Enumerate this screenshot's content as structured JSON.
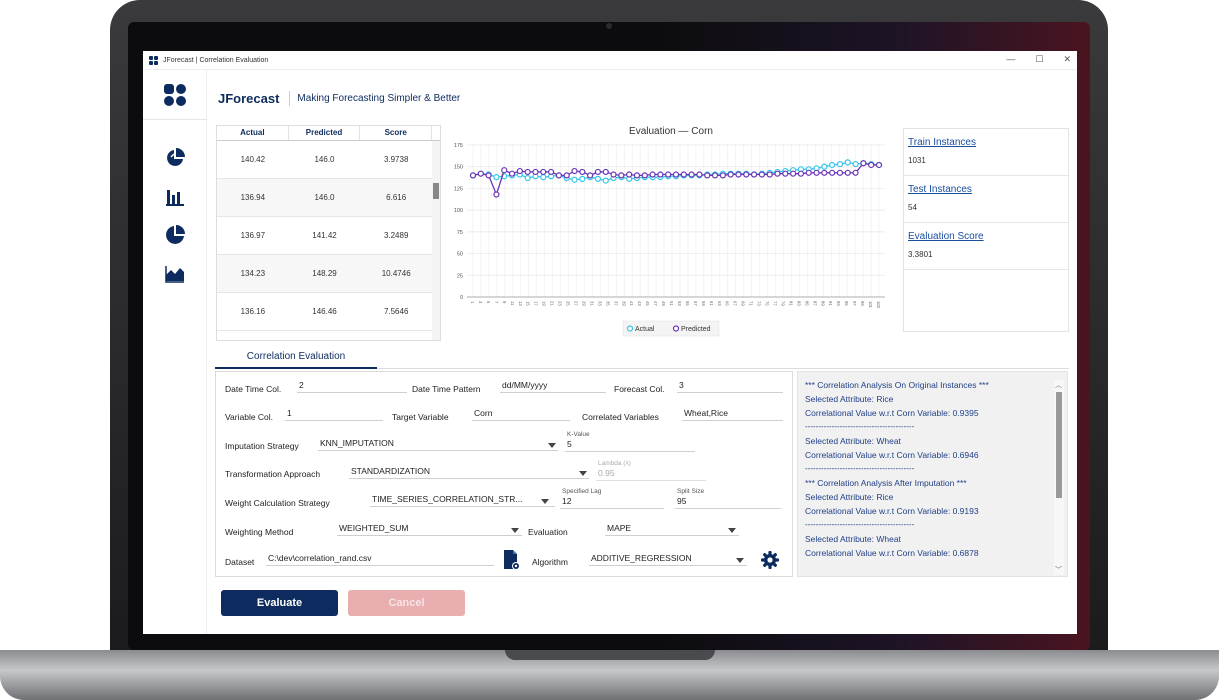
{
  "window": {
    "title": "JForecast | Correlation Evaluation",
    "controls": [
      "—",
      "☐",
      "✕"
    ]
  },
  "header": {
    "brand": "JForecast",
    "tagline": "Making Forecasting Simpler & Better"
  },
  "sidebar": {
    "icons": [
      "pie-chart-icon",
      "bar-chart-icon",
      "donut-chart-icon",
      "area-chart-icon"
    ]
  },
  "table": {
    "columns": [
      "Actual",
      "Predicted",
      "Score"
    ],
    "rows": [
      [
        "140.42",
        "146.0",
        "3.9738"
      ],
      [
        "136.94",
        "146.0",
        "6.616"
      ],
      [
        "136.97",
        "141.42",
        "3.2489"
      ],
      [
        "134.23",
        "148.29",
        "10.4746"
      ],
      [
        "136.16",
        "146.46",
        "7.5646"
      ]
    ]
  },
  "chart": {
    "title": "Evaluation  — Corn",
    "y_ticks": [
      "175",
      "150",
      "125",
      "100",
      "75",
      "50",
      "25",
      "0"
    ],
    "legend": [
      "Actual",
      "Predicted"
    ]
  },
  "chart_data": {
    "type": "line",
    "title": "Evaluation  — Corn",
    "xlabel": "",
    "ylabel": "",
    "ylim": [
      0,
      175
    ],
    "x_ticks": [
      "1",
      "3",
      "5",
      "7",
      "9",
      "11",
      "13",
      "15",
      "17",
      "19",
      "21",
      "23",
      "25",
      "27",
      "29",
      "31",
      "33",
      "35",
      "37",
      "39",
      "41",
      "43",
      "45",
      "47",
      "49",
      "51",
      "53",
      "55",
      "57",
      "59",
      "61",
      "63",
      "65",
      "67",
      "69",
      "71",
      "73",
      "75",
      "77",
      "79",
      "81",
      "83",
      "85",
      "87",
      "89",
      "91",
      "93",
      "95",
      "97",
      "99",
      "101",
      "103",
      "105",
      "107",
      "109",
      "111",
      "113",
      "115",
      "117",
      "119",
      "121",
      "123",
      "125",
      "127",
      "129",
      "131",
      "133",
      "135",
      "137",
      "139",
      "141",
      "143",
      "145",
      "147",
      "149",
      "151",
      "153",
      "155",
      "157",
      "159",
      "161",
      "163",
      "165",
      "167",
      "169",
      "171",
      "173",
      "175",
      "177",
      "179",
      "181",
      "183",
      "185",
      "187",
      "189",
      "191",
      "193",
      "195",
      "197",
      "199"
    ],
    "grid": true,
    "legend_position": "bottom-center",
    "series": [
      {
        "name": "Actual",
        "color": "#35c6e8",
        "values": [
          140,
          142,
          141,
          138,
          139,
          140,
          141,
          137,
          139,
          138,
          139,
          140,
          137,
          135,
          136,
          138,
          136,
          134,
          137,
          138,
          136,
          137,
          138,
          138,
          138,
          139,
          139,
          140,
          140,
          140,
          141,
          141,
          142,
          142,
          142,
          142,
          141,
          142,
          143,
          144,
          145,
          146,
          147,
          147,
          148,
          150,
          152,
          153,
          155,
          153,
          154,
          153,
          152
        ]
      },
      {
        "name": "Predicted",
        "color": "#6a35b5",
        "values": [
          140,
          142,
          140,
          118,
          146,
          142,
          145,
          144,
          144,
          144,
          144,
          140,
          140,
          145,
          144,
          140,
          144,
          144,
          141,
          140,
          141,
          140,
          140,
          141,
          141,
          141,
          141,
          141,
          141,
          141,
          140,
          140,
          140,
          141,
          141,
          141,
          141,
          141,
          141,
          142,
          142,
          142,
          142,
          143,
          143,
          143,
          143,
          143,
          143,
          143,
          154,
          152,
          152
        ]
      }
    ]
  },
  "stats": {
    "train_label": "Train Instances",
    "train_value": "1031",
    "test_label": "Test Instances",
    "test_value": "54",
    "score_label": "Evaluation Score",
    "score_value": "3.3801"
  },
  "tabs": {
    "active": "Correlation Evaluation"
  },
  "form": {
    "date_time_col_label": "Date Time Col.",
    "date_time_col_value": "2",
    "date_time_pattern_label": "Date Time Pattern",
    "date_time_pattern_value": "dd/MM/yyyy",
    "forecast_col_label": "Forecast Col.",
    "forecast_col_value": "3",
    "variable_col_label": "Variable Col.",
    "variable_col_value": "1",
    "target_variable_label": "Target Variable",
    "target_variable_value": "Corn",
    "correlated_variables_label": "Correlated Variables",
    "correlated_variables_value": "Wheat,Rice",
    "imputation_strategy_label": "Imputation Strategy",
    "imputation_strategy_value": "KNN_IMPUTATION",
    "k_value_label": "K-Value",
    "k_value_value": "5",
    "transformation_label": "Transformation Approach",
    "transformation_value": "STANDARDIZATION",
    "lambda_label": "Lambda (λ)",
    "lambda_value": "0.95",
    "weight_calc_label": "Weight Calculation Strategy",
    "weight_calc_value": "TIME_SERIES_CORRELATION_STR...",
    "specified_lag_label": "Specified Lag",
    "specified_lag_value": "12",
    "split_size_label": "Split Size",
    "split_size_value": "95",
    "weighting_method_label": "Weighting Method",
    "weighting_method_value": "WEIGHTED_SUM",
    "evaluation_label": "Evaluation",
    "evaluation_value": "MAPE",
    "dataset_label": "Dataset",
    "dataset_value": "C:\\dev\\correlation_rand.csv",
    "algorithm_label": "Algorithm",
    "algorithm_value": "ADDITIVE_REGRESSION"
  },
  "log": {
    "lines": [
      "*** Correlation Analysis On Original Instances ***",
      "Selected Attribute: Rice",
      "Correlational Value w.r.t Corn Variable: 0.9395",
      "--------------------------------------------------",
      "Selected Attribute: Wheat",
      "Correlational Value w.r.t Corn Variable: 0.6946",
      "--------------------------------------------------",
      "*** Correlation Analysis After Imputation ***",
      "Selected Attribute: Rice",
      "Correlational Value w.r.t Corn Variable: 0.9193",
      "--------------------------------------------------",
      "Selected Attribute: Wheat",
      "Correlational Value w.r.t Corn Variable: 0.6878"
    ]
  },
  "buttons": {
    "evaluate": "Evaluate",
    "cancel": "Cancel"
  }
}
